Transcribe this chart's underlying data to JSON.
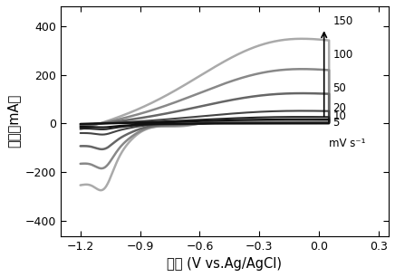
{
  "xlabel": "电位 (V vs.Ag/AgCl)",
  "ylabel": "电流（mA）",
  "xlim": [
    -1.3,
    0.35
  ],
  "ylim": [
    -460,
    480
  ],
  "xticks": [
    -1.2,
    -0.9,
    -0.6,
    -0.3,
    0.0,
    0.3
  ],
  "yticks": [
    -400,
    -200,
    0,
    200,
    400
  ],
  "scan_rates": [
    5,
    10,
    20,
    50,
    100,
    150
  ],
  "colors": [
    "#111111",
    "#222222",
    "#444444",
    "#666666",
    "#888888",
    "#aaaaaa"
  ],
  "linewidths": [
    1.5,
    1.5,
    1.5,
    1.8,
    1.8,
    1.8
  ],
  "legend_labels": [
    "150",
    "100",
    "50",
    "20",
    "10",
    "5"
  ],
  "scales": [
    14,
    22,
    42,
    100,
    180,
    280
  ]
}
